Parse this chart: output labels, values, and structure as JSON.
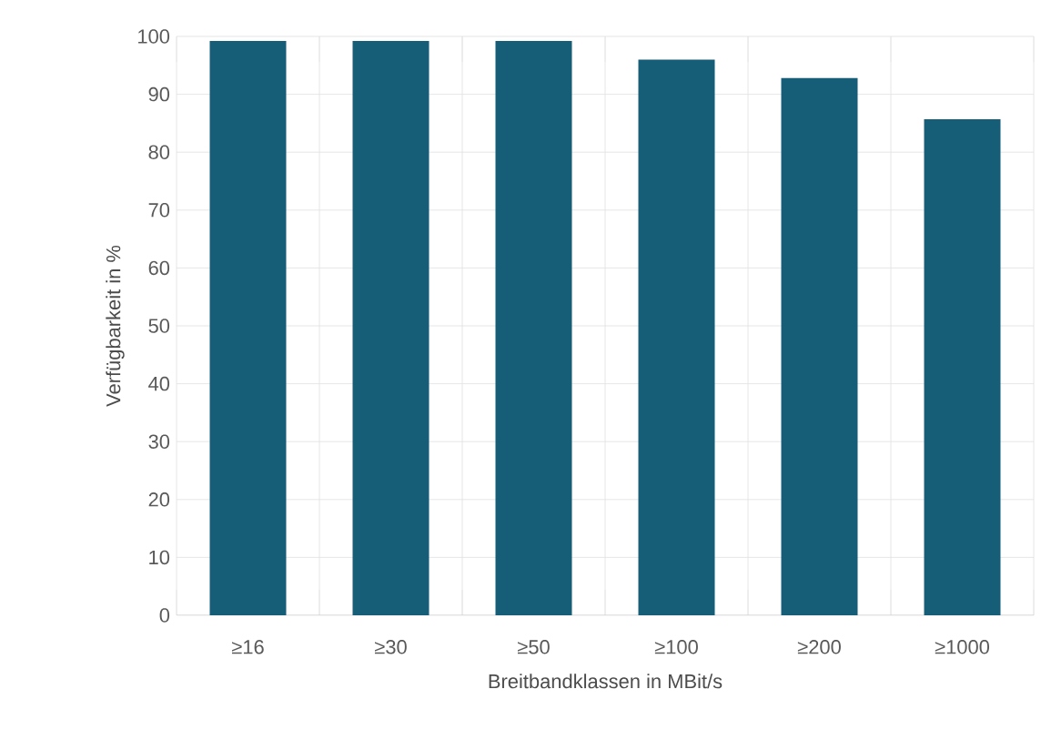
{
  "chart_data": {
    "type": "bar",
    "xlabel": "Breitbandklassen in MBit/s",
    "ylabel": "Verfügbarkeit in %",
    "categories": [
      "≥16",
      "≥30",
      "≥50",
      "≥100",
      "≥200",
      "≥1000"
    ],
    "values": [
      99.2,
      99.2,
      99.2,
      96.0,
      92.8,
      85.7
    ],
    "color": "#165e78",
    "ylim": [
      0,
      100
    ],
    "yticks": [
      0,
      10,
      20,
      30,
      40,
      50,
      60,
      70,
      80,
      90,
      100
    ],
    "grid": true
  }
}
